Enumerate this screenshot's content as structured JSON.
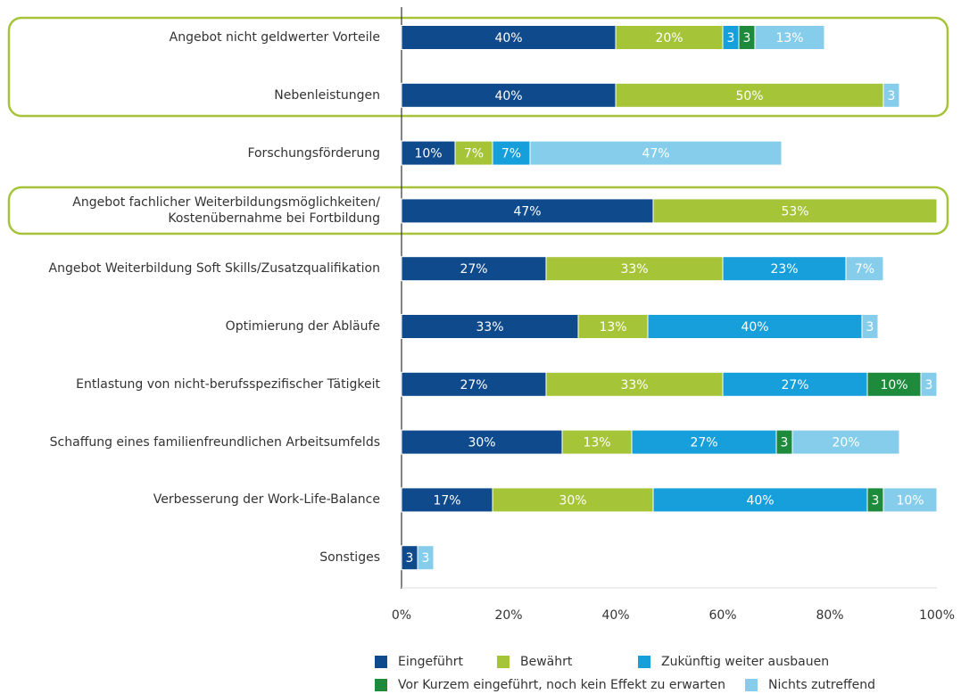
{
  "chart_data": {
    "type": "stacked_barh",
    "categories": [
      "Angebot nicht geldwerter Vorteile",
      "Nebenleistungen",
      "Forschungsförderung",
      "Angebot fachlicher Weiterbildungsmöglichkeiten/\nKostenübernahme bei Fortbildung",
      "Angebot Weiterbildung Soft Skills/Zusatzqualifikation",
      "Optimierung der Abläufe",
      "Entlastung von nicht-berufsspezifischer Tätigkeit",
      "Schaffung eines familienfreundlichen Arbeitsumfelds",
      "Verbesserung der Work-Life-Balance",
      "Sonstiges"
    ],
    "series": [
      {
        "name": "Eingeführt",
        "color": "#0f4a8c",
        "values": [
          40,
          40,
          10,
          47,
          27,
          33,
          27,
          30,
          17,
          3
        ],
        "value_labels": [
          "40%",
          "40%",
          "10%",
          "47%",
          "27%",
          "33%",
          "27%",
          "30%",
          "17%",
          "3"
        ]
      },
      {
        "name": "Bewährt",
        "color": "#a5c438",
        "values": [
          20,
          50,
          7,
          53,
          33,
          13,
          33,
          13,
          30,
          null
        ],
        "value_labels": [
          "20%",
          "50%",
          "7%",
          "53%",
          "33%",
          "13%",
          "33%",
          "13%",
          "30%",
          null
        ]
      },
      {
        "name": "Zukünftig weiter ausbauen",
        "color": "#169fdb",
        "values": [
          3,
          null,
          7,
          null,
          23,
          40,
          27,
          27,
          40,
          null
        ],
        "value_labels": [
          "3",
          null,
          "7%",
          null,
          "23%",
          "40%",
          "27%",
          "27%",
          "40%",
          null
        ]
      },
      {
        "name": "Vor Kurzem eingeführt, noch kein Effekt zu erwarten",
        "color": "#1d8a3c",
        "values": [
          3,
          null,
          null,
          null,
          null,
          null,
          10,
          3,
          3,
          null
        ],
        "value_labels": [
          "3",
          null,
          null,
          null,
          null,
          null,
          "10%",
          "3",
          "3",
          null
        ]
      },
      {
        "name": "Nichts zutreffend",
        "color": "#86cdec",
        "values": [
          13,
          3,
          47,
          null,
          7,
          3,
          3,
          20,
          10,
          3
        ],
        "value_labels": [
          "13%",
          "3",
          "47%",
          null,
          "7%",
          "3",
          "3",
          "20%",
          "10%",
          "3"
        ]
      }
    ],
    "xlim": [
      0,
      100
    ],
    "xticks": [
      {
        "value": 0,
        "label": "0%"
      },
      {
        "value": 20,
        "label": "20%"
      },
      {
        "value": 40,
        "label": "40%"
      },
      {
        "value": 60,
        "label": "60%"
      },
      {
        "value": 80,
        "label": "80%"
      },
      {
        "value": 100,
        "label": "100%"
      }
    ]
  }
}
